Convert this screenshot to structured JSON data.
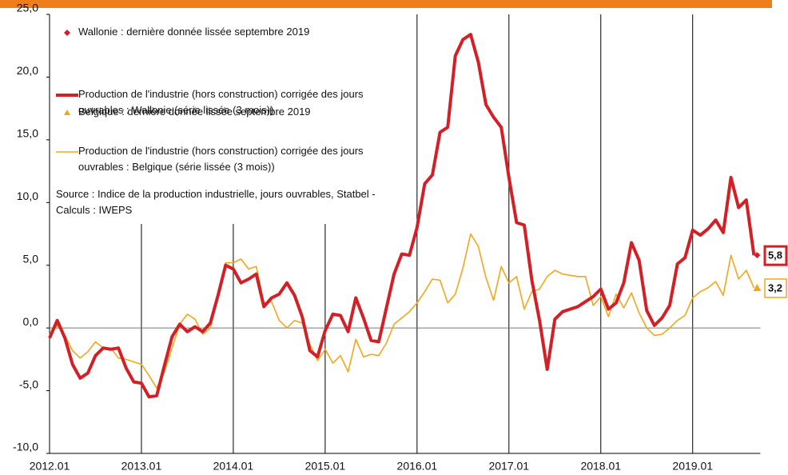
{
  "chart_data": {
    "type": "line",
    "categories": [
      "2012.01",
      null,
      null,
      null,
      null,
      null,
      null,
      null,
      null,
      null,
      null,
      null,
      "2013.01",
      null,
      null,
      null,
      null,
      null,
      null,
      null,
      null,
      null,
      null,
      null,
      "2014.01",
      null,
      null,
      null,
      null,
      null,
      null,
      null,
      null,
      null,
      null,
      null,
      "2015.01",
      null,
      null,
      null,
      null,
      null,
      null,
      null,
      null,
      null,
      null,
      null,
      "2016.01",
      null,
      null,
      null,
      null,
      null,
      null,
      null,
      null,
      null,
      null,
      null,
      "2017.01",
      null,
      null,
      null,
      null,
      null,
      null,
      null,
      null,
      null,
      null,
      null,
      "2018.01",
      null,
      null,
      null,
      null,
      null,
      null,
      null,
      null,
      null,
      null,
      null,
      "2019.01",
      null,
      null,
      null,
      null,
      null,
      null,
      null,
      null
    ],
    "series": [
      {
        "name": "Wallonie : dernière donnée lissée septembre 2019",
        "color": "#d32027",
        "marker": "diamond",
        "values": [
          null,
          null,
          null,
          null,
          null,
          null,
          null,
          null,
          null,
          null,
          null,
          null,
          null,
          null,
          null,
          null,
          null,
          null,
          null,
          null,
          null,
          null,
          null,
          null,
          null,
          null,
          null,
          null,
          null,
          null,
          null,
          null,
          null,
          null,
          null,
          null,
          null,
          null,
          null,
          null,
          null,
          null,
          null,
          null,
          null,
          null,
          null,
          null,
          null,
          null,
          null,
          null,
          null,
          null,
          null,
          null,
          null,
          null,
          null,
          null,
          null,
          null,
          null,
          null,
          null,
          null,
          null,
          null,
          null,
          null,
          null,
          null,
          null,
          null,
          null,
          null,
          null,
          null,
          null,
          null,
          null,
          null,
          null,
          null,
          null,
          null,
          null,
          null,
          null,
          null,
          null,
          null,
          5.8
        ],
        "value_labels": [
          null,
          null,
          null,
          null,
          null,
          null,
          null,
          null,
          null,
          null,
          null,
          null,
          null,
          null,
          null,
          null,
          null,
          null,
          null,
          null,
          null,
          null,
          null,
          null,
          null,
          null,
          null,
          null,
          null,
          null,
          null,
          null,
          null,
          null,
          null,
          null,
          null,
          null,
          null,
          null,
          null,
          null,
          null,
          null,
          null,
          null,
          null,
          null,
          null,
          null,
          null,
          null,
          null,
          null,
          null,
          null,
          null,
          null,
          null,
          null,
          null,
          null,
          null,
          null,
          null,
          null,
          null,
          null,
          null,
          null,
          null,
          null,
          null,
          null,
          null,
          null,
          null,
          null,
          null,
          null,
          null,
          null,
          null,
          null,
          null,
          null,
          null,
          null,
          null,
          null,
          null,
          null,
          "5,8"
        ]
      },
      {
        "name": "Production de l'industrie (hors construction) corrigée des jours ouvrables : Wallonie (série lissée (3 mois))",
        "color": "#d32027",
        "width": 4,
        "values": [
          -0.8,
          0.6,
          -0.8,
          -2.9,
          -4.0,
          -3.6,
          -2.2,
          -1.6,
          -1.7,
          -1.6,
          -3.2,
          -4.3,
          -4.4,
          -5.5,
          -5.4,
          -3.0,
          -0.7,
          0.3,
          -0.3,
          0.1,
          -0.3,
          0.4,
          2.6,
          5.0,
          4.7,
          3.6,
          3.9,
          4.3,
          1.7,
          2.4,
          2.7,
          3.6,
          2.6,
          0.9,
          -1.8,
          -2.3,
          -0.2,
          1.1,
          1.0,
          -0.3,
          2.4,
          0.8,
          -1.0,
          -1.1,
          1.6,
          4.3,
          5.9,
          5.8,
          8.0,
          11.5,
          12.2,
          15.6,
          16.0,
          21.7,
          23.0,
          23.4,
          21.2,
          17.8,
          16.8,
          16.0,
          12.0,
          8.4,
          8.2,
          3.8,
          0.6,
          -3.3,
          0.7,
          1.3,
          1.5,
          1.7,
          2.1,
          2.5,
          3.1,
          1.5,
          2.0,
          3.6,
          6.8,
          5.4,
          1.4,
          0.2,
          0.8,
          1.8,
          5.1,
          5.6,
          7.8,
          7.4,
          7.9,
          8.6,
          7.6,
          12.0,
          9.6,
          10.2,
          5.8
        ]
      },
      {
        "name": "Belgique : dernière donnée lissée septembre 2019",
        "color": "#f2a71b",
        "marker": "triangle",
        "values": [
          null,
          null,
          null,
          null,
          null,
          null,
          null,
          null,
          null,
          null,
          null,
          null,
          null,
          null,
          null,
          null,
          null,
          null,
          null,
          null,
          null,
          null,
          null,
          null,
          null,
          null,
          null,
          null,
          null,
          null,
          null,
          null,
          null,
          null,
          null,
          null,
          null,
          null,
          null,
          null,
          null,
          null,
          null,
          null,
          null,
          null,
          null,
          null,
          null,
          null,
          null,
          null,
          null,
          null,
          null,
          null,
          null,
          null,
          null,
          null,
          null,
          null,
          null,
          null,
          null,
          null,
          null,
          null,
          null,
          null,
          null,
          null,
          null,
          null,
          null,
          null,
          null,
          null,
          null,
          null,
          null,
          null,
          null,
          null,
          null,
          null,
          null,
          null,
          null,
          null,
          null,
          null,
          3.2
        ],
        "value_labels": [
          null,
          null,
          null,
          null,
          null,
          null,
          null,
          null,
          null,
          null,
          null,
          null,
          null,
          null,
          null,
          null,
          null,
          null,
          null,
          null,
          null,
          null,
          null,
          null,
          null,
          null,
          null,
          null,
          null,
          null,
          null,
          null,
          null,
          null,
          null,
          null,
          null,
          null,
          null,
          null,
          null,
          null,
          null,
          null,
          null,
          null,
          null,
          null,
          null,
          null,
          null,
          null,
          null,
          null,
          null,
          null,
          null,
          null,
          null,
          null,
          null,
          null,
          null,
          null,
          null,
          null,
          null,
          null,
          null,
          null,
          null,
          null,
          null,
          null,
          null,
          null,
          null,
          null,
          null,
          null,
          null,
          null,
          null,
          null,
          null,
          null,
          null,
          null,
          null,
          null,
          null,
          null,
          "3,2"
        ]
      },
      {
        "name": "Production de l'industrie (hors construction) corrigée des jours ouvrables : Belgique (série lissée (3 mois))",
        "color": "#f2a71b",
        "width": 1.6,
        "values": [
          -0.5,
          0.2,
          -0.6,
          -1.8,
          -2.4,
          -1.9,
          -1.1,
          -1.6,
          -1.6,
          -2.4,
          -2.5,
          -2.7,
          -2.9,
          -3.8,
          -4.8,
          -3.5,
          -1.6,
          0.3,
          1.1,
          0.7,
          -0.5,
          0.0,
          2.5,
          5.2,
          5.2,
          5.5,
          4.7,
          4.9,
          2.0,
          2.1,
          0.6,
          0.0,
          0.6,
          0.4,
          -1.3,
          -2.6,
          -1.7,
          -2.8,
          -2.2,
          -3.5,
          -0.9,
          -2.3,
          -2.1,
          -2.2,
          -1.2,
          0.3,
          0.8,
          1.3,
          2.0,
          2.9,
          3.9,
          3.8,
          2.0,
          2.7,
          4.8,
          7.5,
          6.5,
          4.0,
          2.2,
          4.9,
          3.6,
          4.1,
          1.5,
          2.9,
          3.1,
          4.1,
          4.6,
          4.3,
          4.2,
          4.1,
          4.1,
          1.8,
          2.5,
          0.9,
          2.7,
          1.6,
          2.8,
          1.2,
          0.0,
          -0.6,
          -0.5,
          0.0,
          0.6,
          1.0,
          2.4,
          2.9,
          3.2,
          3.7,
          2.6,
          5.8,
          3.9,
          4.6,
          3.2
        ]
      }
    ],
    "annotation": "Source : Indice de la production industrielle, jours ouvrables, Statbel - Calculs : IWEPS",
    "ylim": [
      -10,
      25
    ],
    "yticks": [
      {
        "value": -10,
        "label": "-10,0"
      },
      {
        "value": -5,
        "label": "-5,0"
      },
      {
        "value": 0,
        "label": "0,0"
      },
      {
        "value": 5,
        "label": "5,0"
      },
      {
        "value": 10,
        "label": "10,0"
      },
      {
        "value": 15,
        "label": "15,0"
      },
      {
        "value": 20,
        "label": "20,0"
      },
      {
        "value": 25,
        "label": "25,0"
      }
    ],
    "grid": "x"
  }
}
